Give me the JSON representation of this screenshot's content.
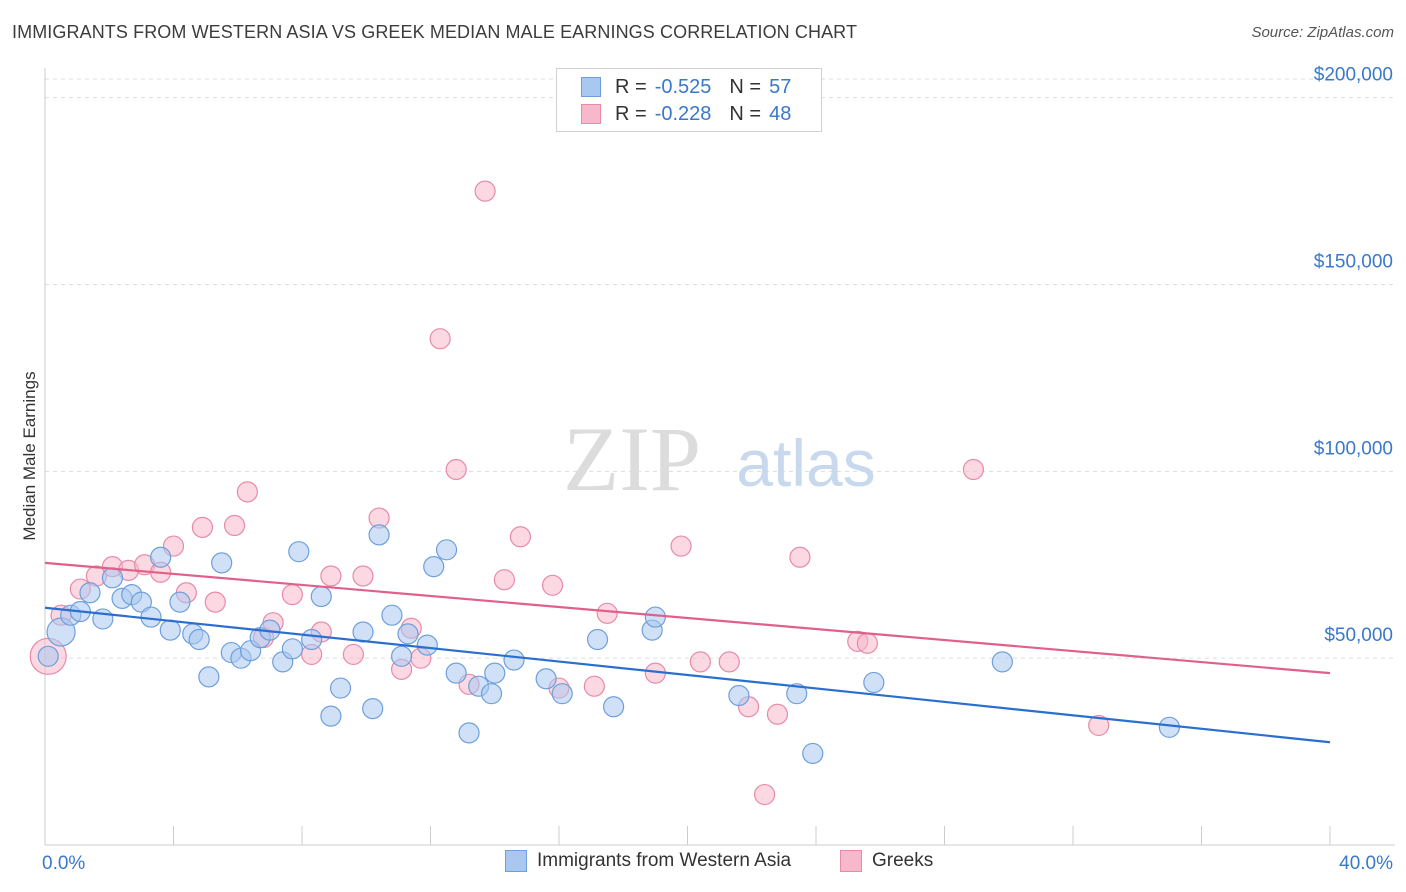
{
  "header": {
    "title": "IMMIGRANTS FROM WESTERN ASIA VS GREEK MEDIAN MALE EARNINGS CORRELATION CHART",
    "source": "Source: ZipAtlas.com"
  },
  "watermark": {
    "part1": "ZIP",
    "part2": "atlas"
  },
  "legend": {
    "rows": [
      {
        "r_label": "R =",
        "r_value": "-0.525",
        "n_label": "N =",
        "n_value": "57"
      },
      {
        "r_label": "R =",
        "r_value": "-0.228",
        "n_label": "N =",
        "n_value": "48"
      }
    ]
  },
  "colors": {
    "blue_fill": "#a9c8f0",
    "blue_stroke": "#6d9fdc",
    "blue_line": "#2a6fd0",
    "pink_fill": "#f7b8cb",
    "pink_stroke": "#e88aa8",
    "pink_line": "#e0608c",
    "axis_text": "#3a78c9",
    "grid": "#dddddd"
  },
  "chart_data": {
    "type": "scatter",
    "title": "IMMIGRANTS FROM WESTERN ASIA VS GREEK MEDIAN MALE EARNINGS CORRELATION CHART",
    "xlabel": "",
    "ylabel": "Median Male Earnings",
    "xlim": [
      0,
      40
    ],
    "ylim": [
      0,
      205000
    ],
    "x_tick_labels": [
      "0.0%",
      "40.0%"
    ],
    "y_ticks": [
      50000,
      100000,
      150000,
      200000
    ],
    "y_tick_labels": [
      "$50,000",
      "$100,000",
      "$150,000",
      "$200,000"
    ],
    "grid": true,
    "legend_position": "top-center and bottom",
    "series": [
      {
        "name": "Immigrants from Western Asia",
        "color": "blue",
        "trend": {
          "x": [
            0,
            40
          ],
          "y": [
            63500,
            27500
          ]
        },
        "points": [
          [
            0.5,
            57000,
            14
          ],
          [
            0.8,
            61500,
            10
          ],
          [
            1.1,
            62500,
            10
          ],
          [
            1.4,
            67500,
            10
          ],
          [
            1.8,
            60500,
            10
          ],
          [
            2.1,
            71500,
            10
          ],
          [
            2.4,
            66000,
            10
          ],
          [
            2.7,
            67000,
            10
          ],
          [
            3.0,
            65000,
            10
          ],
          [
            3.3,
            61000,
            10
          ],
          [
            3.6,
            77000,
            10
          ],
          [
            3.9,
            57500,
            10
          ],
          [
            4.2,
            65000,
            10
          ],
          [
            4.6,
            56500,
            10
          ],
          [
            4.8,
            55000,
            10
          ],
          [
            5.1,
            45000,
            10
          ],
          [
            5.5,
            75500,
            10
          ],
          [
            5.8,
            51500,
            10
          ],
          [
            6.1,
            50000,
            10
          ],
          [
            6.4,
            52000,
            10
          ],
          [
            6.7,
            55500,
            10
          ],
          [
            7.0,
            57500,
            10
          ],
          [
            7.4,
            49000,
            10
          ],
          [
            7.7,
            52500,
            10
          ],
          [
            7.9,
            78500,
            10
          ],
          [
            8.3,
            55000,
            10
          ],
          [
            8.6,
            66500,
            10
          ],
          [
            8.9,
            34500,
            10
          ],
          [
            9.2,
            42000,
            10
          ],
          [
            9.9,
            57000,
            10
          ],
          [
            10.2,
            36500,
            10
          ],
          [
            10.4,
            83000,
            10
          ],
          [
            10.8,
            61500,
            10
          ],
          [
            11.1,
            50500,
            10
          ],
          [
            11.3,
            56500,
            10
          ],
          [
            11.9,
            53500,
            10
          ],
          [
            12.1,
            74500,
            10
          ],
          [
            12.5,
            79000,
            10
          ],
          [
            12.8,
            46000,
            10
          ],
          [
            13.2,
            30000,
            10
          ],
          [
            13.5,
            42500,
            10
          ],
          [
            13.9,
            40500,
            10
          ],
          [
            14.0,
            46000,
            10
          ],
          [
            14.6,
            49500,
            10
          ],
          [
            15.6,
            44500,
            10
          ],
          [
            16.1,
            40500,
            10
          ],
          [
            17.2,
            55000,
            10
          ],
          [
            17.7,
            37000,
            10
          ],
          [
            18.9,
            57500,
            10
          ],
          [
            19.0,
            61000,
            10
          ],
          [
            21.6,
            40000,
            10
          ],
          [
            23.4,
            40500,
            10
          ],
          [
            23.9,
            24500,
            10
          ],
          [
            25.8,
            43500,
            10
          ],
          [
            29.8,
            49000,
            10
          ],
          [
            35.0,
            31500,
            10
          ],
          [
            0.1,
            50500,
            10
          ]
        ]
      },
      {
        "name": "Greeks",
        "color": "pink",
        "trend": {
          "x": [
            0,
            40
          ],
          "y": [
            75500,
            46000
          ]
        },
        "points": [
          [
            0.1,
            50500,
            18
          ],
          [
            0.5,
            61500,
            10
          ],
          [
            1.1,
            68500,
            10
          ],
          [
            1.6,
            72000,
            10
          ],
          [
            2.1,
            74500,
            10
          ],
          [
            2.6,
            73500,
            10
          ],
          [
            3.1,
            75000,
            10
          ],
          [
            3.6,
            73000,
            10
          ],
          [
            4.0,
            80000,
            10
          ],
          [
            4.4,
            67500,
            10
          ],
          [
            4.9,
            85000,
            10
          ],
          [
            5.3,
            65000,
            10
          ],
          [
            5.9,
            85500,
            10
          ],
          [
            6.3,
            94500,
            10
          ],
          [
            6.8,
            55500,
            10
          ],
          [
            7.1,
            59500,
            10
          ],
          [
            7.7,
            67000,
            10
          ],
          [
            8.3,
            51000,
            10
          ],
          [
            8.6,
            57000,
            10
          ],
          [
            8.9,
            72000,
            10
          ],
          [
            9.6,
            51000,
            10
          ],
          [
            9.9,
            72000,
            10
          ],
          [
            10.4,
            87500,
            10
          ],
          [
            11.1,
            47000,
            10
          ],
          [
            11.4,
            58000,
            10
          ],
          [
            11.7,
            50000,
            10
          ],
          [
            12.3,
            135500,
            10
          ],
          [
            12.8,
            100500,
            10
          ],
          [
            13.2,
            43000,
            10
          ],
          [
            13.7,
            175000,
            10
          ],
          [
            14.3,
            71000,
            10
          ],
          [
            14.8,
            82500,
            10
          ],
          [
            15.8,
            69500,
            10
          ],
          [
            16.0,
            42000,
            10
          ],
          [
            17.1,
            42500,
            10
          ],
          [
            17.5,
            62000,
            10
          ],
          [
            19.0,
            46000,
            10
          ],
          [
            19.8,
            80000,
            10
          ],
          [
            20.4,
            49000,
            10
          ],
          [
            21.3,
            49000,
            10
          ],
          [
            21.9,
            37000,
            10
          ],
          [
            22.4,
            13500,
            10
          ],
          [
            22.8,
            35000,
            10
          ],
          [
            23.5,
            77000,
            10
          ],
          [
            25.3,
            54500,
            10
          ],
          [
            25.6,
            54000,
            10
          ],
          [
            28.9,
            100500,
            10
          ],
          [
            32.8,
            32000,
            10
          ]
        ]
      }
    ]
  },
  "bottom_legend": {
    "items": [
      {
        "label": "Immigrants from Western Asia"
      },
      {
        "label": "Greeks"
      }
    ]
  }
}
